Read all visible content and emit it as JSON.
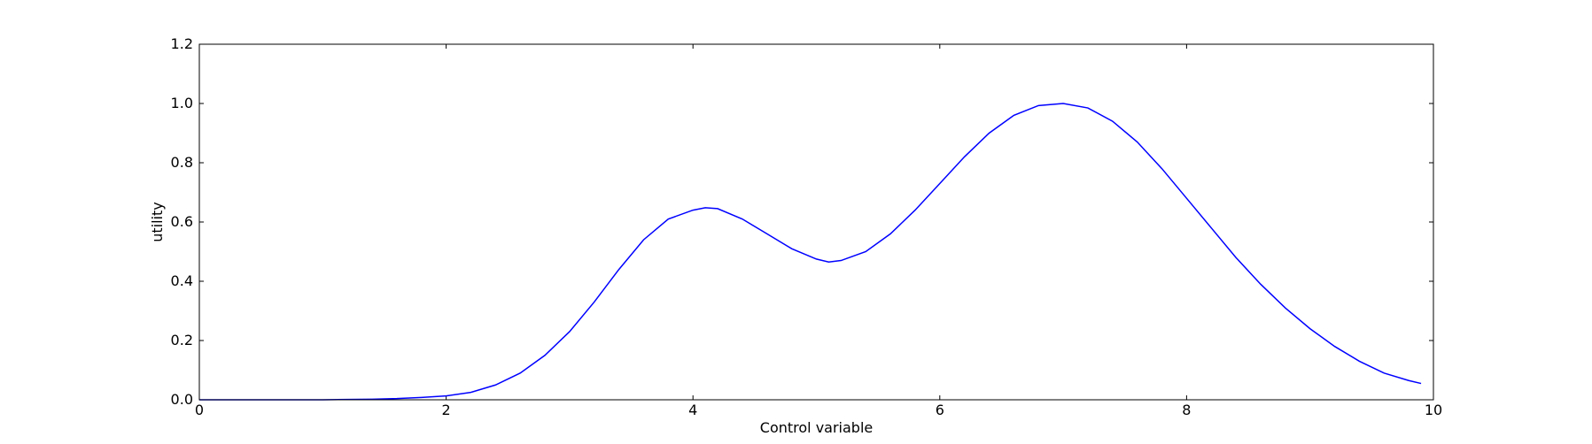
{
  "chart_data": {
    "type": "line",
    "title": "",
    "xlabel": "Control variable",
    "ylabel": "utility",
    "xlim": [
      0,
      10
    ],
    "ylim": [
      0,
      1.2
    ],
    "x_ticks": [
      "0",
      "2",
      "4",
      "6",
      "8",
      "10"
    ],
    "y_ticks": [
      "0.0",
      "0.2",
      "0.4",
      "0.6",
      "0.8",
      "1.0",
      "1.2"
    ],
    "grid": false,
    "legend": "none",
    "line_color": "#0000ff",
    "series": [
      {
        "x": [
          0.0,
          0.2,
          0.4,
          0.6,
          0.8,
          1.0,
          1.2,
          1.4,
          1.6,
          1.8,
          2.0,
          2.2,
          2.4,
          2.6,
          2.8,
          3.0,
          3.2,
          3.4,
          3.6,
          3.8,
          4.0,
          4.1,
          4.2,
          4.4,
          4.6,
          4.8,
          5.0,
          5.1,
          5.2,
          5.4,
          5.6,
          5.8,
          6.0,
          6.2,
          6.4,
          6.6,
          6.8,
          7.0,
          7.2,
          7.4,
          7.6,
          7.8,
          8.0,
          8.2,
          8.4,
          8.6,
          8.8,
          9.0,
          9.2,
          9.4,
          9.6,
          9.8,
          9.9
        ],
        "y": [
          0.0,
          0.0,
          0.0,
          0.0,
          0.0,
          0.0,
          0.001,
          0.002,
          0.004,
          0.008,
          0.013,
          0.025,
          0.05,
          0.09,
          0.15,
          0.23,
          0.33,
          0.44,
          0.54,
          0.61,
          0.64,
          0.648,
          0.645,
          0.61,
          0.56,
          0.51,
          0.475,
          0.465,
          0.47,
          0.5,
          0.56,
          0.64,
          0.73,
          0.82,
          0.9,
          0.96,
          0.993,
          1.0,
          0.985,
          0.94,
          0.87,
          0.78,
          0.68,
          0.58,
          0.48,
          0.39,
          0.31,
          0.24,
          0.18,
          0.13,
          0.09,
          0.065,
          0.055
        ]
      }
    ]
  }
}
